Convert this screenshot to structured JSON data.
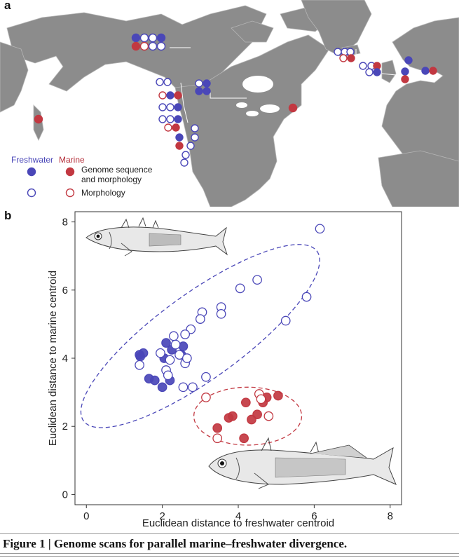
{
  "panel_a": {
    "letter": "a",
    "legend": {
      "freshwater_label": "Freshwater",
      "marine_label": "Marine",
      "genome_label_line1": "Genome sequence",
      "genome_label_line2": "and morphology",
      "morphology_label": "Morphology"
    },
    "colors": {
      "freshwater": "#4a47b8",
      "marine": "#c23841",
      "land": "#8c8c8c",
      "sea": "#ffffff"
    },
    "icons": [
      "world-map-illustration",
      "freshwater-filled-marker",
      "marine-filled-marker",
      "freshwater-open-marker",
      "marine-open-marker"
    ]
  },
  "panel_b": {
    "letter": "b",
    "icons": [
      "marine-stickleback-fish-drawing",
      "freshwater-stickleback-fish-drawing"
    ]
  },
  "chart_data": {
    "type": "scatter",
    "xlabel": "Euclidean distance to freshwater centroid",
    "ylabel": "Euclidean distance to marine centroid",
    "xlim": [
      -0.3,
      8.3
    ],
    "ylim": [
      -0.3,
      8.3
    ],
    "xticks": [
      "0",
      "2",
      "4",
      "6",
      "8"
    ],
    "yticks": [
      "0",
      "2",
      "4",
      "6",
      "8"
    ],
    "grid": false,
    "series": [
      {
        "kind": "freshwater-genome",
        "color": "#4a47b8",
        "filled": true,
        "x": [
          1.5,
          1.42,
          2.1,
          2.05,
          2.25,
          1.8,
          2.0,
          2.2,
          1.65,
          2.55,
          2.5,
          1.4
        ],
        "y": [
          4.15,
          4.05,
          4.45,
          4.0,
          4.25,
          3.35,
          3.15,
          3.35,
          3.4,
          4.35,
          4.1,
          4.1
        ]
      },
      {
        "kind": "freshwater-morphology",
        "color": "#4a47b8",
        "filled": false,
        "x": [
          6.15,
          4.5,
          4.05,
          5.8,
          3.55,
          3.55,
          3.05,
          3.0,
          5.25,
          2.75,
          2.6,
          2.3,
          2.35,
          2.45,
          2.6,
          1.95,
          2.2,
          3.15,
          2.8,
          2.55,
          1.4,
          2.1,
          2.15,
          2.65
        ],
        "y": [
          7.8,
          6.3,
          6.05,
          5.8,
          5.5,
          5.3,
          5.35,
          5.15,
          5.1,
          4.85,
          4.7,
          4.65,
          4.4,
          4.1,
          3.85,
          4.15,
          3.95,
          3.45,
          3.15,
          3.15,
          3.8,
          3.65,
          3.5,
          4.0
        ]
      },
      {
        "kind": "marine-genome",
        "color": "#c23841",
        "filled": true,
        "x": [
          3.85,
          3.75,
          4.2,
          5.05,
          4.65,
          4.5,
          4.75,
          4.35,
          3.45,
          4.15
        ],
        "y": [
          2.3,
          2.25,
          2.7,
          2.9,
          2.7,
          2.35,
          2.85,
          2.2,
          1.95,
          1.65
        ]
      },
      {
        "kind": "marine-morphology",
        "color": "#c23841",
        "filled": false,
        "x": [
          3.15,
          4.55,
          4.6,
          4.8,
          3.45
        ],
        "y": [
          2.85,
          2.95,
          2.8,
          2.3,
          1.65
        ]
      }
    ],
    "ellipses": [
      {
        "kind": "freshwater",
        "color": "#4a47b8",
        "cx": 3.0,
        "cy": 4.65,
        "rx": 3.8,
        "ry": 1.25,
        "angle_deg": 36
      },
      {
        "kind": "marine",
        "color": "#c23841",
        "cx": 4.25,
        "cy": 2.3,
        "rx": 1.42,
        "ry": 0.85,
        "angle_deg": 0
      }
    ]
  },
  "caption": "Figure 1 | Genome scans for parallel marine–freshwater divergence."
}
